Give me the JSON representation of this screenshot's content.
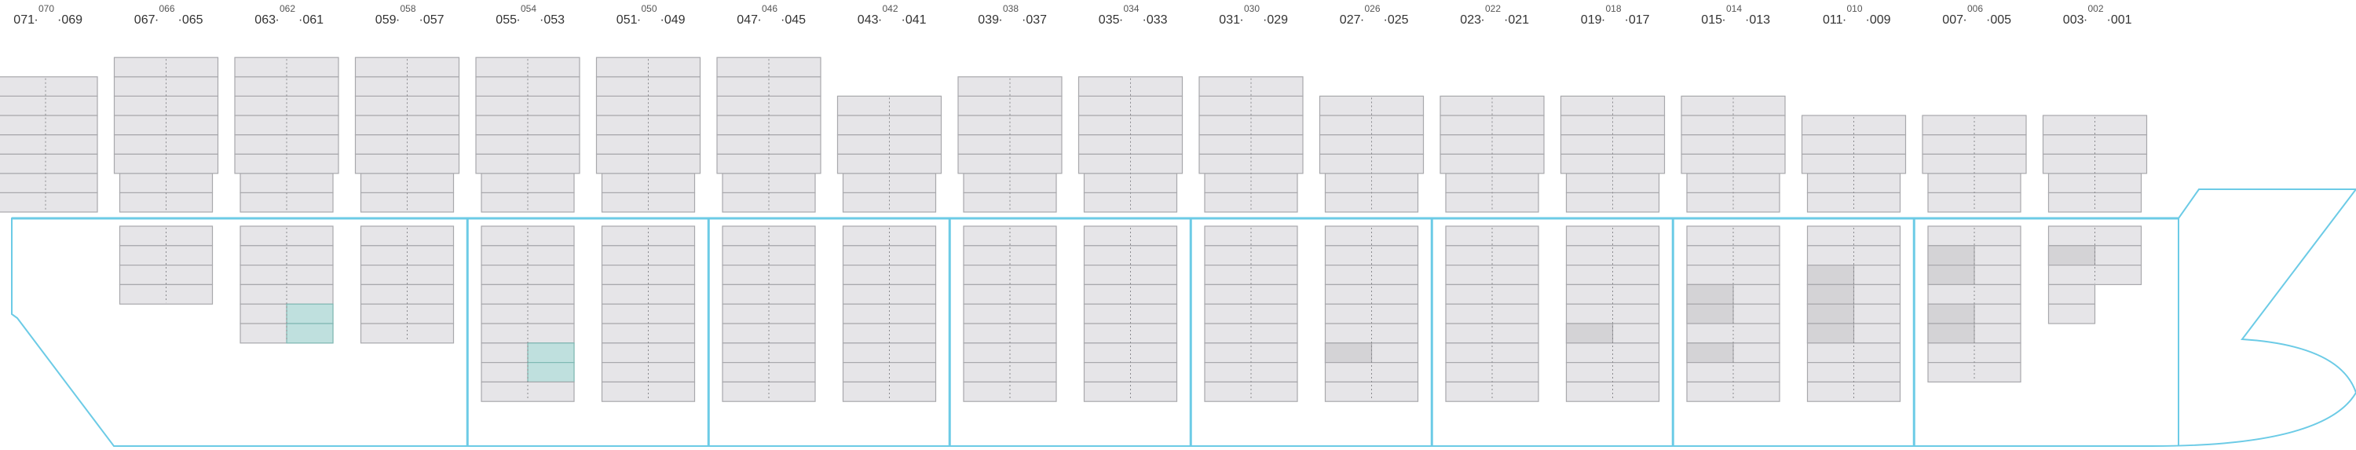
{
  "title": "",
  "colors": {
    "hull": "#6ccbe6",
    "slot_fill": "#e6e5e8",
    "slot_stroke": "#a8a8ac",
    "divider": "#8a8a8e",
    "teal_full": "#bfe0de",
    "teal_light": "#c8f2ec",
    "grey_occupied": "#d4d3d6"
  },
  "bays": [
    {
      "left": "071",
      "mid": "070",
      "right": "069"
    },
    {
      "left": "067",
      "mid": "066",
      "right": "065"
    },
    {
      "left": "063",
      "mid": "062",
      "right": "061"
    },
    {
      "left": "059",
      "mid": "058",
      "right": "057"
    },
    {
      "left": "055",
      "mid": "054",
      "right": "053"
    },
    {
      "left": "051",
      "mid": "050",
      "right": "049"
    },
    {
      "left": "047",
      "mid": "046",
      "right": "045"
    },
    {
      "left": "043",
      "mid": "042",
      "right": "041"
    },
    {
      "left": "039",
      "mid": "038",
      "right": "037"
    },
    {
      "left": "035",
      "mid": "034",
      "right": "033"
    },
    {
      "left": "031",
      "mid": "030",
      "right": "029"
    },
    {
      "left": "027",
      "mid": "026",
      "right": "025"
    },
    {
      "left": "023",
      "mid": "022",
      "right": "021"
    },
    {
      "left": "019",
      "mid": "018",
      "right": "017"
    },
    {
      "left": "015",
      "mid": "014",
      "right": "013"
    },
    {
      "left": "011",
      "mid": "010",
      "right": "009"
    },
    {
      "left": "007",
      "mid": "006",
      "right": "005"
    },
    {
      "left": "003",
      "mid": "002",
      "right": "001"
    }
  ],
  "deck_tiers": [
    7,
    8,
    8,
    8,
    8,
    8,
    8,
    6,
    7,
    7,
    7,
    6,
    6,
    6,
    6,
    5,
    5,
    5
  ],
  "hold_tiers": [
    0,
    4,
    6,
    6,
    9,
    9,
    9,
    9,
    9,
    9,
    9,
    9,
    9,
    9,
    9,
    9,
    8,
    5
  ],
  "hold_occupied": [
    {
      "bay": 1,
      "slot": "right",
      "tier": 4,
      "status": "teal_light"
    },
    {
      "bay": 2,
      "slot": "right",
      "tier": 4,
      "status": "teal_full"
    },
    {
      "bay": 2,
      "slot": "right",
      "tier": 5,
      "status": "teal_full"
    },
    {
      "bay": 4,
      "slot": "right",
      "tier": 6,
      "status": "teal_full"
    },
    {
      "bay": 4,
      "slot": "right",
      "tier": 7,
      "status": "teal_full"
    },
    {
      "bay": 11,
      "slot": "left",
      "tier": 6,
      "status": "grey_occupied"
    },
    {
      "bay": 13,
      "slot": "left",
      "tier": 5,
      "status": "grey_occupied"
    },
    {
      "bay": 14,
      "slot": "left",
      "tier": 3,
      "status": "grey_occupied"
    },
    {
      "bay": 14,
      "slot": "left",
      "tier": 4,
      "status": "grey_occupied"
    },
    {
      "bay": 14,
      "slot": "left",
      "tier": 6,
      "status": "grey_occupied"
    },
    {
      "bay": 15,
      "slot": "left",
      "tier": 2,
      "status": "grey_occupied"
    },
    {
      "bay": 15,
      "slot": "left",
      "tier": 3,
      "status": "grey_occupied"
    },
    {
      "bay": 15,
      "slot": "left",
      "tier": 4,
      "status": "grey_occupied"
    },
    {
      "bay": 15,
      "slot": "left",
      "tier": 5,
      "status": "grey_occupied"
    },
    {
      "bay": 16,
      "slot": "left",
      "tier": 1,
      "status": "grey_occupied"
    },
    {
      "bay": 16,
      "slot": "left",
      "tier": 2,
      "status": "grey_occupied"
    },
    {
      "bay": 16,
      "slot": "left",
      "tier": 4,
      "status": "grey_occupied"
    },
    {
      "bay": 16,
      "slot": "left",
      "tier": 5,
      "status": "grey_occupied"
    },
    {
      "bay": 17,
      "slot": "left",
      "tier": 1,
      "status": "grey_occupied"
    }
  ]
}
